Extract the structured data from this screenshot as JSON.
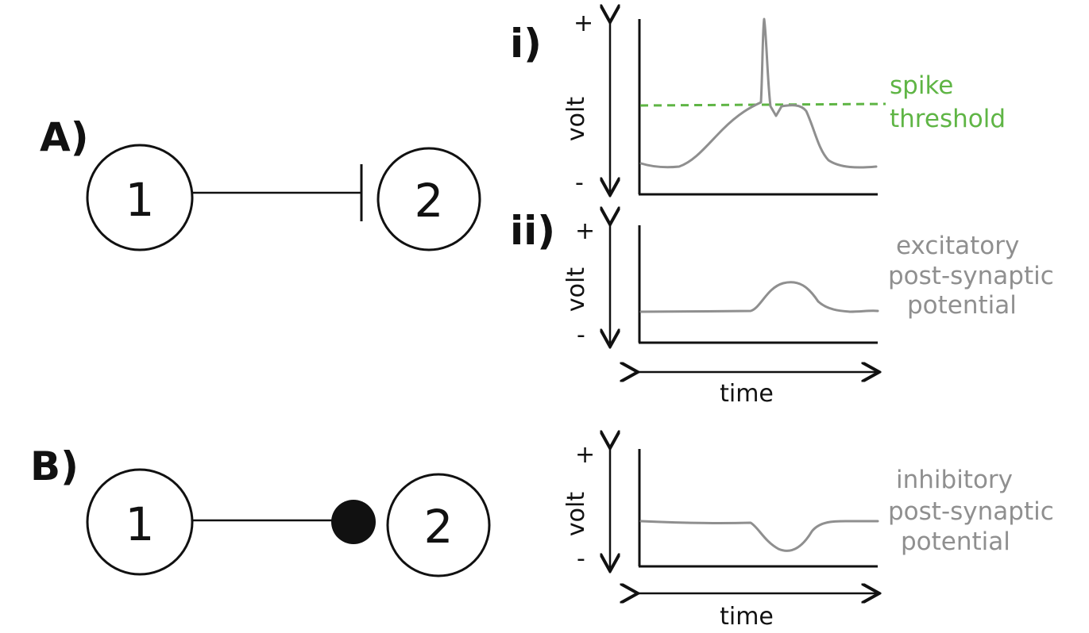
{
  "colors": {
    "ink": "#111111",
    "trace": "#8f8f8f",
    "threshold": "#5fb545",
    "annotation": "#8f8f8f"
  },
  "panels": {
    "a": {
      "label": "A)",
      "neuron_1": "1",
      "neuron_2": "2",
      "synapse": "bar-terminal"
    },
    "b": {
      "label": "B)",
      "neuron_1": "1",
      "neuron_2": "2",
      "synapse": "filled-dot-terminal"
    }
  },
  "plots": {
    "i": {
      "label": "i)",
      "y_label": "volt",
      "y_plus": "+",
      "y_minus": "-",
      "threshold_line_1": "spike",
      "threshold_line_2": "threshold"
    },
    "ii": {
      "label": "ii)",
      "y_label": "volt",
      "y_plus": "+",
      "y_minus": "-",
      "x_label": "time",
      "note_line_1": "excitatory",
      "note_line_2": "post-synaptic",
      "note_line_3": "potential"
    },
    "b": {
      "y_label": "volt",
      "y_plus": "+",
      "y_minus": "-",
      "x_label": "time",
      "note_line_1": "inhibitory",
      "note_line_2": "post-synaptic",
      "note_line_3": "potential"
    }
  }
}
